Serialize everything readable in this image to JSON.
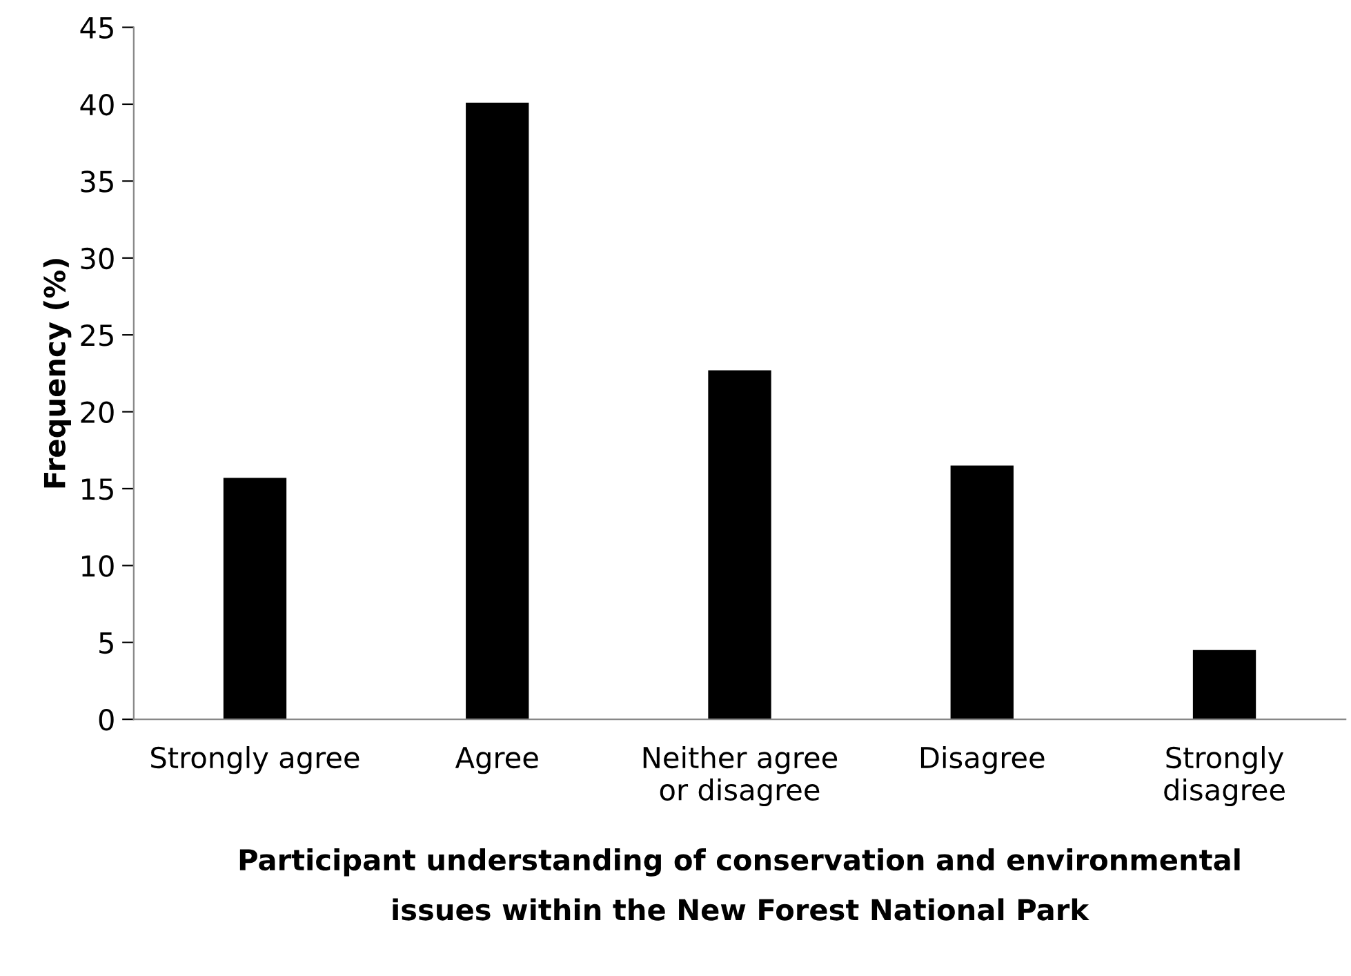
{
  "chart_data": {
    "type": "bar",
    "xlabel": "Participant understanding of conservation and environmental\nissues within the New Forest National Park",
    "ylabel": "Frequency (%)",
    "categories": [
      "Strongly agree",
      "Agree",
      "Neither agree\nor disagree",
      "Disagree",
      "Strongly\ndisagree"
    ],
    "values": [
      15.7,
      40.1,
      22.7,
      16.5,
      4.5
    ],
    "color": "#000000",
    "ylim": [
      0,
      45
    ],
    "yticks": [
      0,
      5,
      10,
      15,
      20,
      25,
      30,
      35,
      40,
      45
    ],
    "grid": false,
    "legend": false
  }
}
